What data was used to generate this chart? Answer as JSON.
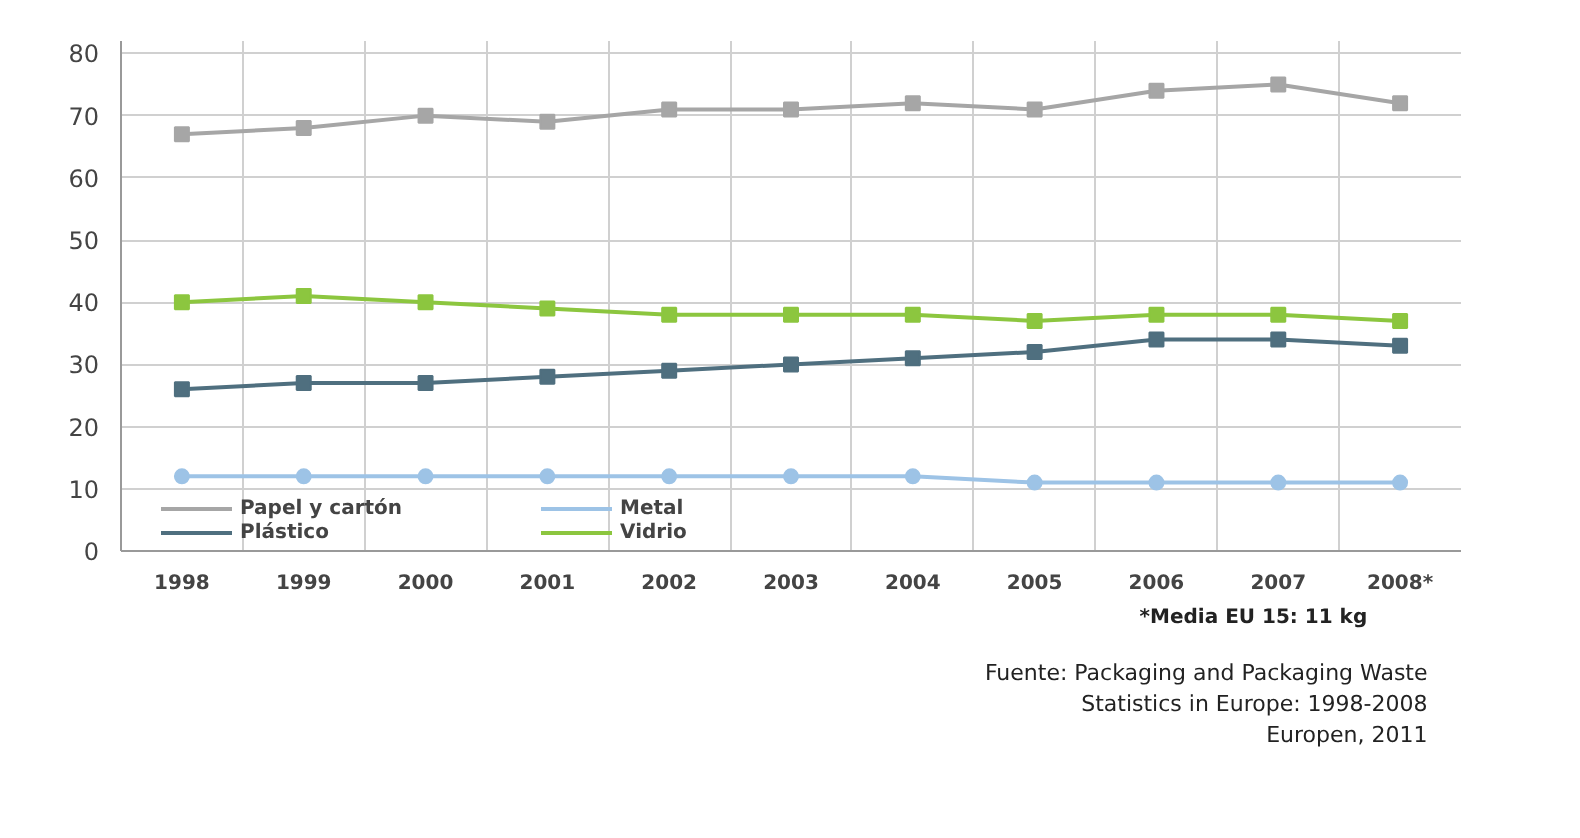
{
  "chart_data": {
    "type": "line",
    "categories": [
      "1998",
      "1999",
      "2000",
      "2001",
      "2002",
      "2003",
      "2004",
      "2005",
      "2006",
      "2007",
      "2008*"
    ],
    "series": [
      {
        "name": "Papel y cartón",
        "color": "#a6a6a6",
        "marker": "square",
        "values": [
          67,
          68,
          70,
          69,
          71,
          71,
          72,
          71,
          74,
          75,
          72
        ]
      },
      {
        "name": "Plástico",
        "color": "#4f6f7f",
        "marker": "square",
        "values": [
          26,
          27,
          27,
          28,
          29,
          30,
          31,
          32,
          34,
          34,
          33
        ]
      },
      {
        "name": "Metal",
        "color": "#9dc3e6",
        "marker": "circle",
        "values": [
          12,
          12,
          12,
          12,
          12,
          12,
          12,
          11,
          11,
          11,
          11
        ]
      },
      {
        "name": "Vidrio",
        "color": "#8cc63f",
        "marker": "square",
        "values": [
          40,
          41,
          40,
          39,
          38,
          38,
          38,
          37,
          38,
          38,
          37
        ]
      }
    ],
    "ylim": [
      0,
      82
    ],
    "yticks": [
      0,
      10,
      20,
      30,
      40,
      50,
      60,
      70,
      80
    ],
    "grid": true,
    "legend": "bottom",
    "line_style": "solid",
    "annotations": [
      "*Media EU 15: 11 kg",
      "Fuente: Packaging and Packaging Waste\nStatistics in Europe: 1998-2008\nEuropen, 2011"
    ]
  }
}
